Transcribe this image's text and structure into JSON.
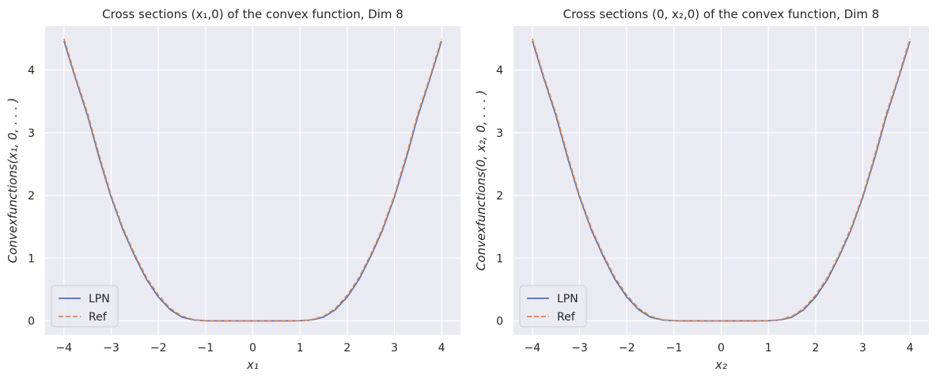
{
  "chart_data": [
    {
      "type": "line",
      "title": "Cross sections (x₁,0) of the convex function, Dim 8",
      "xlabel": "x₁",
      "ylabel": "Convexfunctions(x₁, 0, . . . )",
      "xlim": [
        -4.4,
        4.4
      ],
      "ylim": [
        -0.22,
        4.7
      ],
      "xticks": [
        -4,
        -3,
        -2,
        -1,
        0,
        1,
        2,
        3,
        4
      ],
      "xtick_labels": [
        "−4",
        "−3",
        "−2",
        "−1",
        "0",
        "1",
        "2",
        "3",
        "4"
      ],
      "yticks": [
        0,
        1,
        2,
        3,
        4
      ],
      "ytick_labels": [
        "0",
        "1",
        "2",
        "3",
        "4"
      ],
      "legend": {
        "position": "lower-left",
        "entries": [
          "LPN",
          "Ref"
        ]
      },
      "series": [
        {
          "name": "LPN",
          "style": "solid",
          "color": "#4c72b0",
          "x": [
            -4,
            -3.75,
            -3.5,
            -3.25,
            -3,
            -2.75,
            -2.5,
            -2.25,
            -2,
            -1.75,
            -1.5,
            -1.25,
            -1,
            -0.75,
            -0.5,
            -0.25,
            0,
            0.25,
            0.5,
            0.75,
            1,
            1.25,
            1.5,
            1.75,
            2,
            2.25,
            2.5,
            2.75,
            3,
            3.25,
            3.5,
            3.75,
            4
          ],
          "y": [
            4.46,
            3.85,
            3.27,
            2.59,
            1.97,
            1.45,
            1.03,
            0.66,
            0.38,
            0.18,
            0.06,
            0.015,
            0.003,
            0.001,
            0.001,
            0.0,
            0.0,
            0.0,
            0.001,
            0.001,
            0.003,
            0.015,
            0.06,
            0.18,
            0.38,
            0.66,
            1.03,
            1.45,
            1.97,
            2.59,
            3.27,
            3.85,
            4.46
          ]
        },
        {
          "name": "Ref",
          "style": "dashed",
          "color": "#dd8452",
          "x": [
            -4,
            -3.75,
            -3.5,
            -3.25,
            -3,
            -2.75,
            -2.5,
            -2.25,
            -2,
            -1.75,
            -1.5,
            -1.25,
            -1,
            -0.75,
            -0.5,
            -0.25,
            0,
            0.25,
            0.5,
            0.75,
            1,
            1.25,
            1.5,
            1.75,
            2,
            2.25,
            2.5,
            2.75,
            3,
            3.25,
            3.5,
            3.75,
            4
          ],
          "y": [
            4.5,
            3.88,
            3.31,
            2.63,
            2.0,
            1.48,
            1.06,
            0.69,
            0.41,
            0.2,
            0.075,
            0.02,
            0.004,
            0.001,
            0.0,
            0.0,
            0.0,
            0.0,
            0.0,
            0.001,
            0.004,
            0.02,
            0.075,
            0.2,
            0.41,
            0.69,
            1.06,
            1.48,
            2.0,
            2.63,
            3.31,
            3.88,
            4.5
          ]
        }
      ]
    },
    {
      "type": "line",
      "title": "Cross sections (0, x₂,0) of the convex function, Dim 8",
      "xlabel": "x₂",
      "ylabel": "Convexfunctions(0, x₂, 0, . . . )",
      "xlim": [
        -4.4,
        4.4
      ],
      "ylim": [
        -0.22,
        4.7
      ],
      "xticks": [
        -4,
        -3,
        -2,
        -1,
        0,
        1,
        2,
        3,
        4
      ],
      "xtick_labels": [
        "−4",
        "−3",
        "−2",
        "−1",
        "0",
        "1",
        "2",
        "3",
        "4"
      ],
      "yticks": [
        0,
        1,
        2,
        3,
        4
      ],
      "ytick_labels": [
        "0",
        "1",
        "2",
        "3",
        "4"
      ],
      "legend": {
        "position": "lower-left",
        "entries": [
          "LPN",
          "Ref"
        ]
      },
      "series": [
        {
          "name": "LPN",
          "style": "solid",
          "color": "#4c72b0",
          "x": [
            -4,
            -3.75,
            -3.5,
            -3.25,
            -3,
            -2.75,
            -2.5,
            -2.25,
            -2,
            -1.75,
            -1.5,
            -1.25,
            -1,
            -0.75,
            -0.5,
            -0.25,
            0,
            0.25,
            0.5,
            0.75,
            1,
            1.25,
            1.5,
            1.75,
            2,
            2.25,
            2.5,
            2.75,
            3,
            3.25,
            3.5,
            3.75,
            4
          ],
          "y": [
            4.46,
            3.85,
            3.27,
            2.59,
            1.97,
            1.45,
            1.03,
            0.66,
            0.38,
            0.18,
            0.06,
            0.015,
            0.003,
            0.001,
            0.001,
            0.0,
            0.0,
            0.0,
            0.001,
            0.001,
            0.003,
            0.015,
            0.06,
            0.18,
            0.38,
            0.66,
            1.03,
            1.45,
            1.97,
            2.59,
            3.27,
            3.85,
            4.46
          ]
        },
        {
          "name": "Ref",
          "style": "dashed",
          "color": "#dd8452",
          "x": [
            -4,
            -3.75,
            -3.5,
            -3.25,
            -3,
            -2.75,
            -2.5,
            -2.25,
            -2,
            -1.75,
            -1.5,
            -1.25,
            -1,
            -0.75,
            -0.5,
            -0.25,
            0,
            0.25,
            0.5,
            0.75,
            1,
            1.25,
            1.5,
            1.75,
            2,
            2.25,
            2.5,
            2.75,
            3,
            3.25,
            3.5,
            3.75,
            4
          ],
          "y": [
            4.5,
            3.88,
            3.31,
            2.63,
            2.0,
            1.48,
            1.06,
            0.69,
            0.41,
            0.2,
            0.075,
            0.02,
            0.004,
            0.001,
            0.0,
            0.0,
            0.0,
            0.0,
            0.0,
            0.001,
            0.004,
            0.02,
            0.075,
            0.2,
            0.41,
            0.69,
            1.06,
            1.48,
            2.0,
            2.63,
            3.31,
            3.88,
            4.5
          ]
        }
      ]
    }
  ],
  "colors": {
    "plot_bg": "#eaeaf2",
    "grid": "#ffffff",
    "text": "#262626"
  }
}
